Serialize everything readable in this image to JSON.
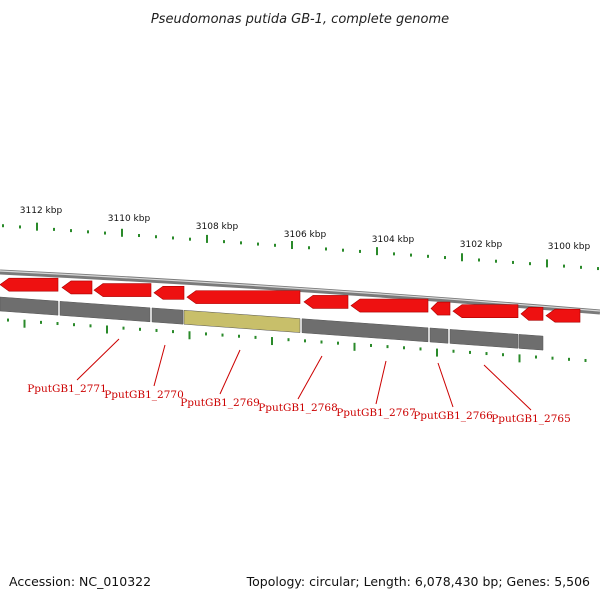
{
  "title": "Pseudomonas putida GB-1, complete genome",
  "footer": {
    "accession": "Accession: NC_010322",
    "summary": "Topology: circular; Length: 6,078,430 bp; Genes: 5,506"
  },
  "scale_labels": [
    "3112 kbp",
    "3110 kbp",
    "3108 kbp",
    "3106 kbp",
    "3104 kbp",
    "3102 kbp",
    "3100 kbp"
  ],
  "gene_labels": [
    "PputGB1_2771",
    "PputGB1_2770",
    "PputGB1_2769",
    "PputGB1_2768",
    "PputGB1_2767",
    "PputGB1_2766",
    "PputGB1_2765"
  ],
  "colors": {
    "gene_arrow": "#ee1111",
    "gene_band": "#6e6e6e",
    "highlight_band": "#c8bf6a",
    "backbone": "#8a8a8a",
    "tick": "#2a8a2a",
    "label": "#cc0000"
  }
}
